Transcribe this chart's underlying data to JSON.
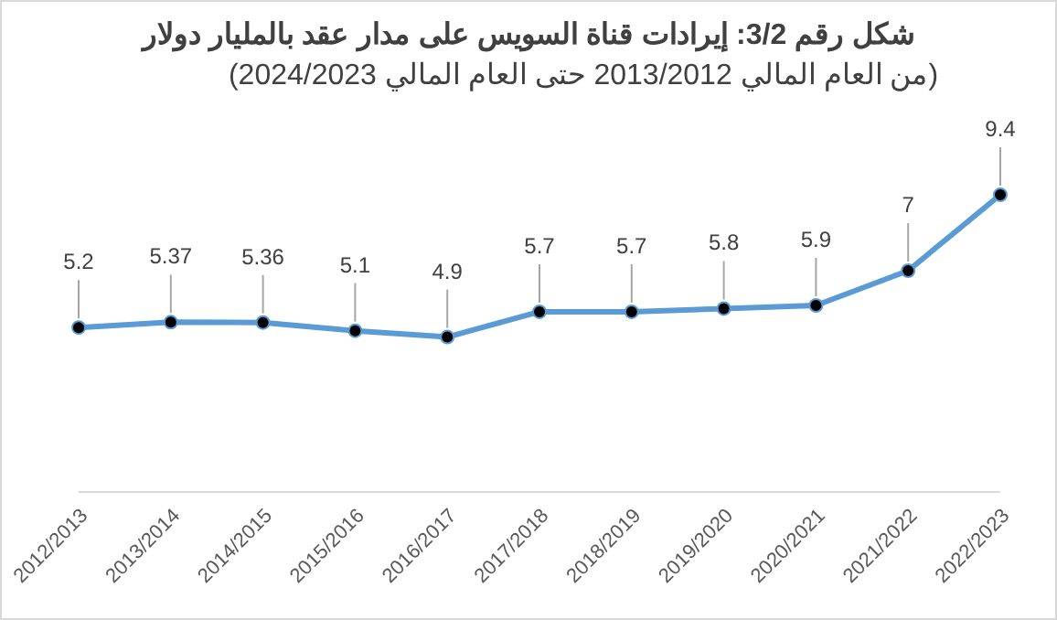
{
  "chart_data": {
    "type": "line",
    "title": "شكل رقم 3/2: إيرادات قناة السويس على مدار عقد بالمليار دولار",
    "subtitle": "(من العام المالي 2013/2012 حتى العام المالي 2024/2023)",
    "categories": [
      "2012/2013",
      "2013/2014",
      "2014/2015",
      "2015/2016",
      "2016/2017",
      "2017/2018",
      "2018/2019",
      "2019/2020",
      "2020/2021",
      "2021/2022",
      "2022/2023"
    ],
    "series": [
      {
        "color": "#5b9bd5",
        "values": [
          5.2,
          5.37,
          5.36,
          5.1,
          4.9,
          5.7,
          5.7,
          5.8,
          5.9,
          7,
          9.4
        ]
      }
    ],
    "data_labels": true,
    "marker": "circle",
    "line_style": "solid"
  }
}
